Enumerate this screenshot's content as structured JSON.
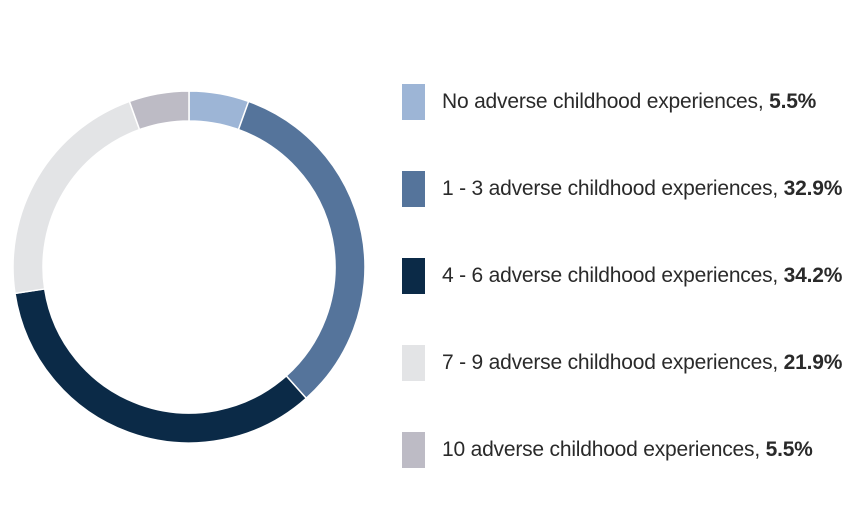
{
  "chart_data": {
    "type": "pie",
    "variant": "donut",
    "legend_position": "right",
    "title": "",
    "slices": [
      {
        "label": "No adverse childhood experiences",
        "value": 5.5,
        "value_label": "5.5%",
        "color": "#9db5d6"
      },
      {
        "label": "1 - 3 adverse childhood experiences",
        "value": 32.9,
        "value_label": "32.9%",
        "color": "#55749b"
      },
      {
        "label": "4 - 6 adverse childhood experiences",
        "value": 34.2,
        "value_label": "34.2%",
        "color": "#0b2a47"
      },
      {
        "label": "7 - 9 adverse childhood experiences",
        "value": 21.9,
        "value_label": "21.9%",
        "color": "#e3e4e6"
      },
      {
        "label": "10 adverse childhood experiences",
        "value": 5.5,
        "value_label": "5.5%",
        "color": "#bdbbc5"
      }
    ]
  }
}
